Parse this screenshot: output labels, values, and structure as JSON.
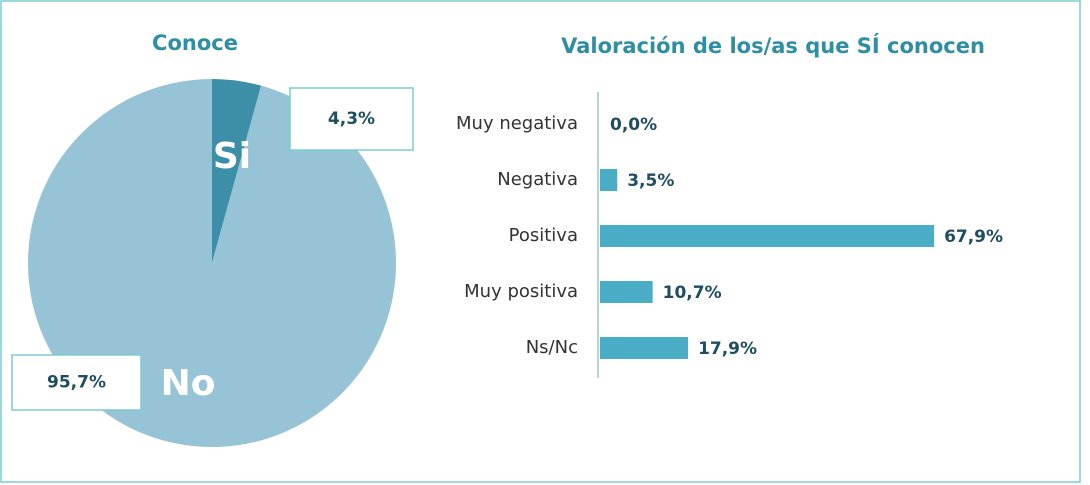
{
  "chart_data": [
    {
      "type": "pie",
      "title": "Conoce",
      "categories": [
        "Si",
        "No"
      ],
      "values": [
        4.3,
        95.7
      ],
      "value_labels": [
        "4,3%",
        "95,7%"
      ],
      "colors": [
        "#3d8fa8",
        "#96c3d5"
      ]
    },
    {
      "type": "bar",
      "title": "Valoración de los/as que SÍ conocen",
      "categories": [
        "Muy negativa",
        "Negativa",
        "Positiva",
        "Muy positiva",
        "Ns/Nc"
      ],
      "values": [
        0.0,
        3.5,
        67.9,
        10.7,
        17.9
      ],
      "value_labels": [
        "0,0%",
        "3,5%",
        "67,9%",
        "10,7%",
        "17,9%"
      ],
      "color": "#4bacc6"
    }
  ]
}
